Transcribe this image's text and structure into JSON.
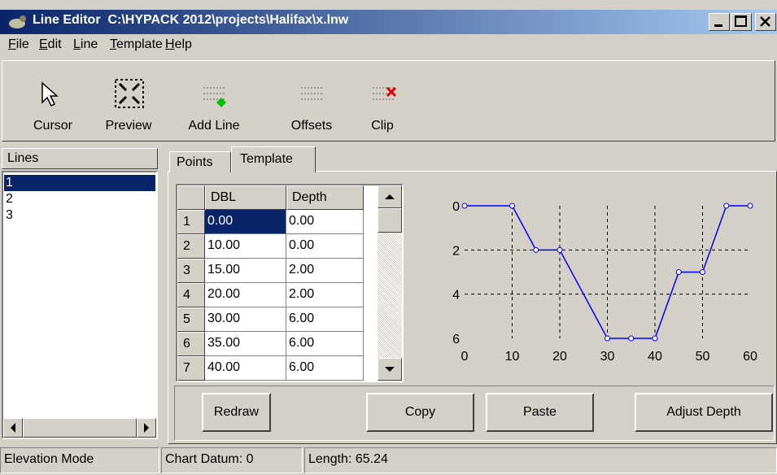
{
  "window": {
    "title": "Line Editor  C:\\HYPACK 2012\\projects\\Halifax\\x.lnw"
  },
  "menu": [
    "File",
    "Edit",
    "Line",
    "Template",
    "Help"
  ],
  "toolbar": [
    "Cursor",
    "Preview",
    "Add Line",
    "Offsets",
    "Clip"
  ],
  "lines": {
    "header": "Lines",
    "items": [
      "1",
      "2",
      "3"
    ]
  },
  "tabs": [
    "Points",
    "Template"
  ],
  "table": {
    "columns": [
      "DBL",
      "Depth"
    ],
    "rows": [
      [
        "1",
        "0.00",
        "0.00"
      ],
      [
        "2",
        "10.00",
        "0.00"
      ],
      [
        "3",
        "15.00",
        "2.00"
      ],
      [
        "4",
        "20.00",
        "2.00"
      ],
      [
        "5",
        "30.00",
        "6.00"
      ],
      [
        "6",
        "35.00",
        "6.00"
      ],
      [
        "7",
        "40.00",
        "6.00"
      ]
    ]
  },
  "chart_data": {
    "type": "line",
    "x": [
      0,
      10,
      15,
      20,
      30,
      35,
      40,
      45,
      50,
      55,
      60
    ],
    "values": [
      0,
      0,
      2,
      2,
      6,
      6,
      6,
      3,
      3,
      0,
      0
    ],
    "xlim": [
      0,
      60
    ],
    "ylim": [
      0,
      6
    ],
    "y_inverted": true,
    "xticks": [
      0,
      10,
      20,
      30,
      40,
      50,
      60
    ],
    "yticks": [
      0,
      2,
      4,
      6
    ],
    "grid": true,
    "color": "#0000ff"
  },
  "buttons": [
    "Redraw",
    "Copy",
    "Paste",
    "Adjust Depth"
  ],
  "status": [
    "Elevation Mode",
    "Chart Datum: 0",
    "Length: 65.24"
  ]
}
